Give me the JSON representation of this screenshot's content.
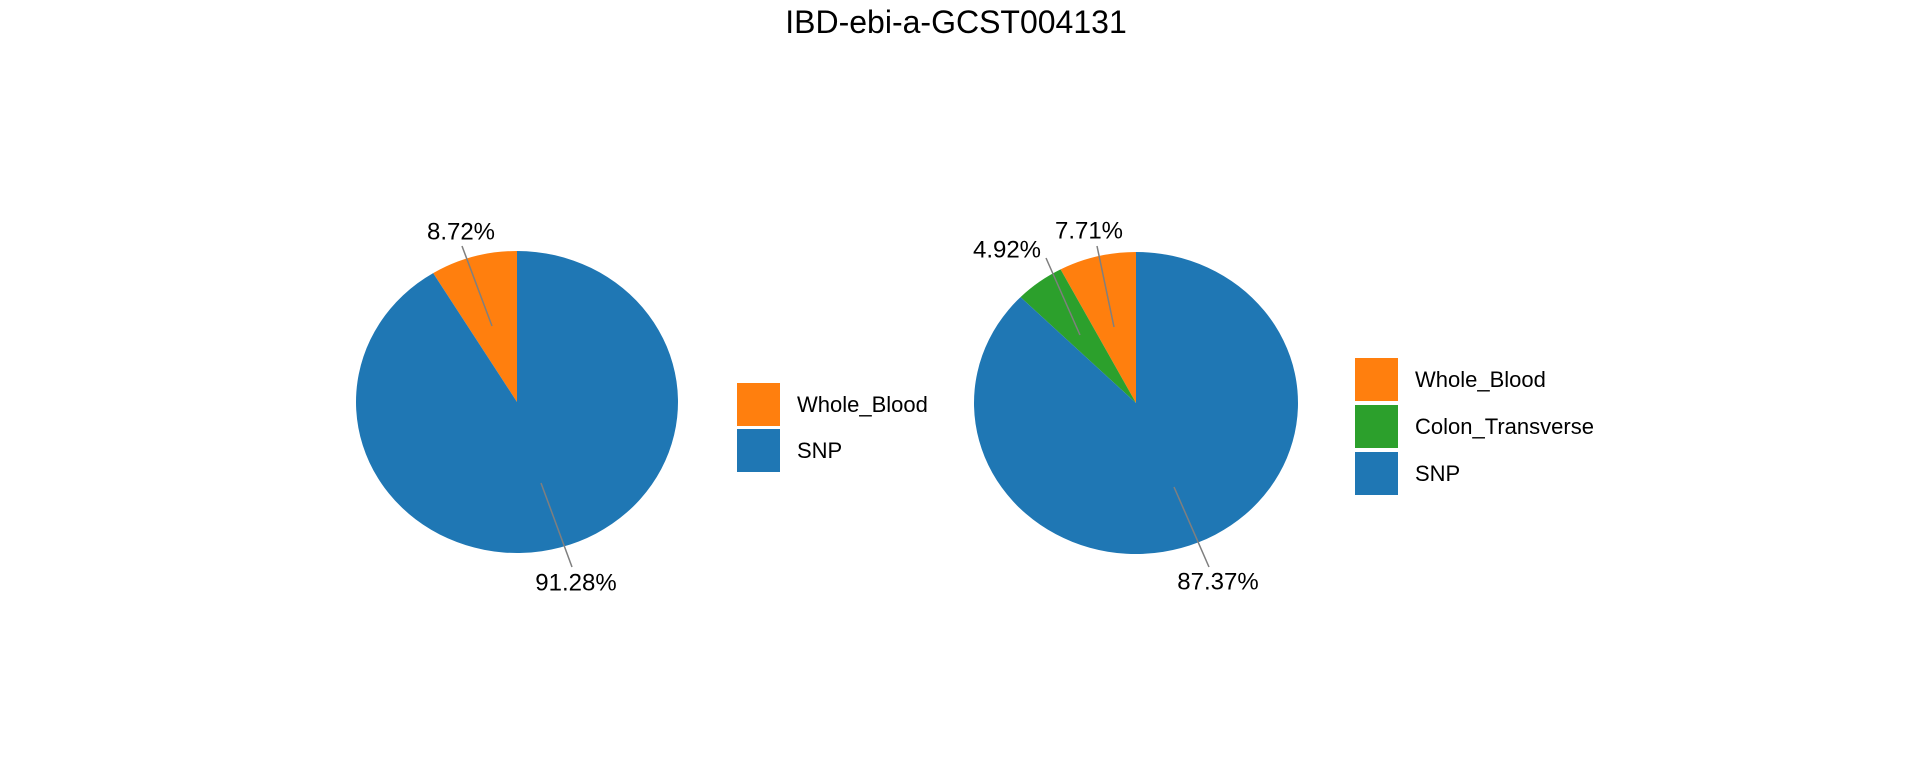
{
  "title": "IBD-ebi-a-GCST004131",
  "chart_data": {
    "type": "pie",
    "title": "IBD-ebi-a-GCST004131",
    "start_angle": 90,
    "direction": "counterclockwise",
    "legend_position": "right of each pie, vertically centered",
    "pies": [
      {
        "name": "left-pie",
        "slices": [
          {
            "label": "Whole_Blood",
            "value": 8.72,
            "pct_label": "8.72%",
            "color": "#ff7f0e"
          },
          {
            "label": "SNP",
            "value": 91.28,
            "pct_label": "91.28%",
            "color": "#1f77b4"
          }
        ]
      },
      {
        "name": "right-pie",
        "slices": [
          {
            "label": "Whole_Blood",
            "value": 7.71,
            "pct_label": "7.71%",
            "color": "#ff7f0e"
          },
          {
            "label": "Colon_Transverse",
            "value": 4.92,
            "pct_label": "4.92%",
            "color": "#2ca02c"
          },
          {
            "label": "SNP",
            "value": 87.37,
            "pct_label": "87.37%",
            "color": "#1f77b4"
          }
        ]
      }
    ]
  },
  "colors": {
    "background": "#ffffff",
    "text": "#000000",
    "leader_line": "#7f7f7f",
    "blue": "#1f77b4",
    "orange": "#ff7f0e",
    "green": "#2ca02c"
  }
}
